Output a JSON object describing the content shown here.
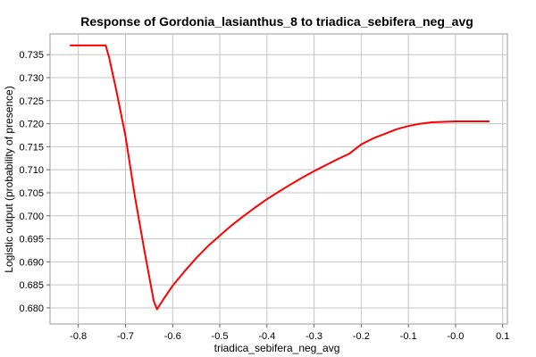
{
  "chart_data": {
    "type": "line",
    "title": "Response of Gordonia_lasianthus_8 to triadica_sebifera_neg_avg",
    "xlabel": "triadica_sebifera_neg_avg",
    "ylabel": "Logistic output (probability of presence)",
    "xlim": [
      -0.86,
      0.11
    ],
    "ylim": [
      0.6765,
      0.7395
    ],
    "xticks": [
      -0.8,
      -0.7,
      -0.6,
      -0.5,
      -0.4,
      -0.3,
      -0.2,
      -0.1,
      0.0,
      0.1
    ],
    "xtick_labels": [
      "-0.8",
      "-0.7",
      "-0.6",
      "-0.5",
      "-0.4",
      "-0.3",
      "-0.2",
      "-0.1",
      "-0.0",
      "0.1"
    ],
    "yticks": [
      0.68,
      0.685,
      0.69,
      0.695,
      0.7,
      0.705,
      0.71,
      0.715,
      0.72,
      0.725,
      0.73,
      0.735
    ],
    "ytick_labels": [
      "0.680",
      "0.685",
      "0.690",
      "0.695",
      "0.700",
      "0.705",
      "0.710",
      "0.715",
      "0.720",
      "0.725",
      "0.730",
      "0.735"
    ],
    "grid": true,
    "legend": "none",
    "series": [
      {
        "color": "#ff0000",
        "x": [
          -0.818,
          -0.742,
          -0.735,
          -0.72,
          -0.7,
          -0.68,
          -0.66,
          -0.64,
          -0.633,
          -0.62,
          -0.6,
          -0.575,
          -0.55,
          -0.525,
          -0.5,
          -0.475,
          -0.45,
          -0.425,
          -0.4,
          -0.375,
          -0.35,
          -0.325,
          -0.3,
          -0.275,
          -0.25,
          -0.225,
          -0.2,
          -0.175,
          -0.15,
          -0.125,
          -0.1,
          -0.075,
          -0.05,
          -0.025,
          0.0,
          0.025,
          0.05,
          0.072
        ],
        "y": [
          0.737,
          0.737,
          0.7345,
          0.7275,
          0.7173,
          0.7042,
          0.6925,
          0.6815,
          0.6797,
          0.6818,
          0.6848,
          0.6879,
          0.6908,
          0.6934,
          0.6957,
          0.6979,
          0.6999,
          0.7018,
          0.7036,
          0.7052,
          0.7068,
          0.7083,
          0.7097,
          0.711,
          0.7123,
          0.7135,
          0.7155,
          0.7168,
          0.7178,
          0.7188,
          0.7195,
          0.72,
          0.7203,
          0.7204,
          0.7205,
          0.7205,
          0.7205,
          0.7205
        ]
      }
    ]
  }
}
